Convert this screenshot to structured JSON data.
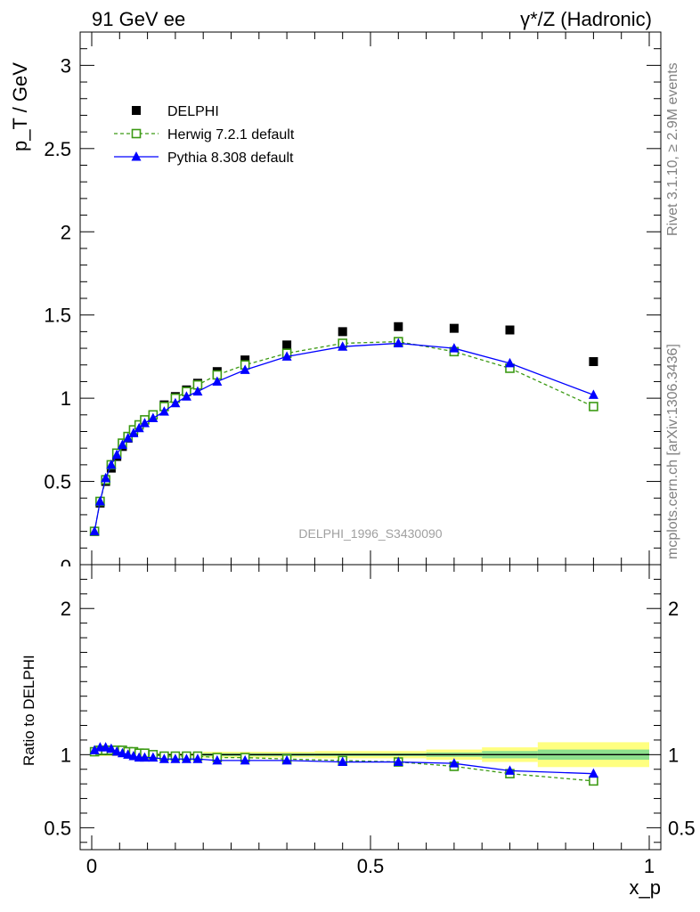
{
  "header": {
    "left": "91 GeV ee",
    "right": "γ*/Z (Hadronic)"
  },
  "side_labels": {
    "events": "Rivet 3.1.10, ≥ 2.9M events",
    "source": "mcplots.cern.ch [arXiv:1306.3436]"
  },
  "analysis_id": "DELPHI_1996_S3430090",
  "chart_data": [
    {
      "type": "scatter",
      "ylabel": "p_T / GeV",
      "xlim": [
        0,
        1
      ],
      "ylim": [
        0,
        3.2
      ],
      "yticks": [
        "0.5",
        "1",
        "1.5",
        "2",
        "2.5",
        "3"
      ],
      "x": [
        0.005,
        0.015,
        0.025,
        0.035,
        0.045,
        0.055,
        0.065,
        0.075,
        0.085,
        0.095,
        0.11,
        0.13,
        0.15,
        0.17,
        0.19,
        0.225,
        0.275,
        0.35,
        0.45,
        0.55,
        0.65,
        0.75,
        0.9
      ],
      "series": [
        {
          "name": "DELPHI",
          "color": "#000000",
          "marker": "square-filled",
          "values": [
            0.2,
            0.37,
            0.5,
            0.58,
            0.65,
            0.71,
            0.76,
            0.8,
            0.84,
            0.87,
            0.9,
            0.96,
            1.01,
            1.05,
            1.09,
            1.16,
            1.23,
            1.32,
            1.4,
            1.43,
            1.42,
            1.41,
            1.22
          ]
        },
        {
          "name": "Herwig 7.2.1 default",
          "color": "#3c9a14",
          "marker": "square-open",
          "line": "dashed",
          "values": [
            0.2,
            0.38,
            0.51,
            0.6,
            0.67,
            0.73,
            0.77,
            0.81,
            0.84,
            0.87,
            0.9,
            0.95,
            1.0,
            1.04,
            1.08,
            1.14,
            1.2,
            1.27,
            1.33,
            1.34,
            1.28,
            1.18,
            0.95
          ]
        },
        {
          "name": "Pythia 8.308 default",
          "color": "#0000ff",
          "marker": "triangle-filled",
          "line": "solid",
          "values": [
            0.2,
            0.38,
            0.52,
            0.6,
            0.66,
            0.72,
            0.76,
            0.79,
            0.82,
            0.85,
            0.88,
            0.92,
            0.97,
            1.01,
            1.04,
            1.1,
            1.17,
            1.25,
            1.31,
            1.33,
            1.3,
            1.21,
            1.02
          ]
        }
      ],
      "legend": "top-left"
    },
    {
      "type": "scatter",
      "ylabel": "Ratio to DELPHI",
      "xlabel": "x_p",
      "xlim": [
        0,
        1
      ],
      "ylim": [
        0.35,
        2.3
      ],
      "yticks": [
        "0.5",
        "1",
        "2"
      ],
      "xticks": [
        "0",
        "0.5",
        "1"
      ],
      "band_inner": [
        {
          "x0": 0.0,
          "x1": 0.2,
          "half": 0.005
        },
        {
          "x0": 0.2,
          "x1": 0.4,
          "half": 0.01
        },
        {
          "x0": 0.4,
          "x1": 0.6,
          "half": 0.01
        },
        {
          "x0": 0.6,
          "x1": 0.7,
          "half": 0.015
        },
        {
          "x0": 0.7,
          "x1": 0.8,
          "half": 0.025
        },
        {
          "x0": 0.8,
          "x1": 1.0,
          "half": 0.035
        }
      ],
      "band_outer": [
        {
          "x0": 0.0,
          "x1": 0.2,
          "half": 0.01
        },
        {
          "x0": 0.2,
          "x1": 0.4,
          "half": 0.02
        },
        {
          "x0": 0.4,
          "x1": 0.6,
          "half": 0.025
        },
        {
          "x0": 0.6,
          "x1": 0.7,
          "half": 0.035
        },
        {
          "x0": 0.7,
          "x1": 0.8,
          "half": 0.05
        },
        {
          "x0": 0.8,
          "x1": 1.0,
          "half": 0.085
        }
      ],
      "band_colors": {
        "inner": "#8de08d",
        "outer": "#ffff80"
      },
      "x": [
        0.005,
        0.015,
        0.025,
        0.035,
        0.045,
        0.055,
        0.065,
        0.075,
        0.085,
        0.095,
        0.11,
        0.13,
        0.15,
        0.17,
        0.19,
        0.225,
        0.275,
        0.35,
        0.45,
        0.55,
        0.65,
        0.75,
        0.9
      ],
      "series": [
        {
          "name": "Herwig 7.2.1 default",
          "color": "#3c9a14",
          "marker": "square-open",
          "line": "dashed",
          "values": [
            1.02,
            1.03,
            1.03,
            1.03,
            1.03,
            1.03,
            1.02,
            1.02,
            1.01,
            1.01,
            1.0,
            0.99,
            0.99,
            0.99,
            0.99,
            0.98,
            0.98,
            0.97,
            0.96,
            0.95,
            0.92,
            0.87,
            0.82
          ]
        },
        {
          "name": "Pythia 8.308 default",
          "color": "#0000ff",
          "marker": "triangle-filled",
          "line": "solid",
          "values": [
            1.03,
            1.05,
            1.05,
            1.04,
            1.02,
            1.01,
            1.0,
            0.99,
            0.98,
            0.98,
            0.98,
            0.97,
            0.97,
            0.97,
            0.97,
            0.96,
            0.96,
            0.96,
            0.95,
            0.95,
            0.94,
            0.89,
            0.87
          ]
        }
      ]
    }
  ]
}
